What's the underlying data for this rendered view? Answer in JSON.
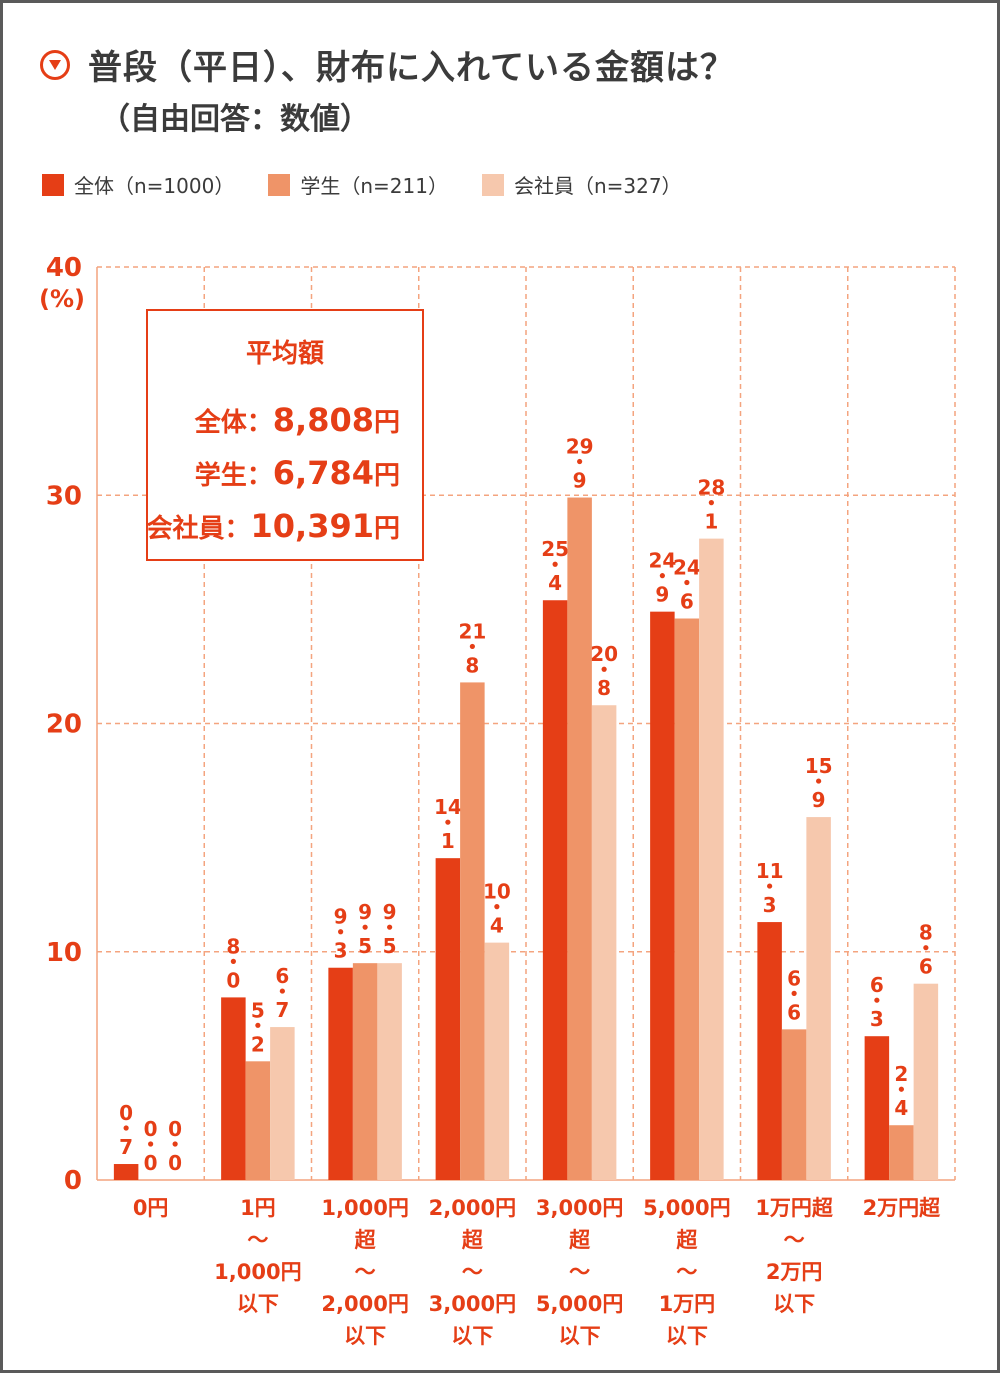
{
  "header": {
    "title": "普段（平日）、財布に入れている金額は？",
    "subtitle": "（自由回答：数値）"
  },
  "colors": {
    "accent": "#e53e16",
    "series": [
      "#e53e16",
      "#ef9468",
      "#f6c8ad"
    ],
    "text": "#3b3b3b"
  },
  "average_box": {
    "title": "平均額",
    "rows": [
      {
        "label": "全体：",
        "value": "8,808",
        "unit": "円"
      },
      {
        "label": "学生：",
        "value": "6,784",
        "unit": "円"
      },
      {
        "label": "会社員：",
        "value": "10,391",
        "unit": "円"
      }
    ]
  },
  "chart_data": {
    "type": "bar",
    "ylabel": "(%)",
    "ylim": [
      0,
      40
    ],
    "yticks": [
      "0",
      "10",
      "20",
      "30",
      "40"
    ],
    "grid": true,
    "legend_position": "top-left",
    "categories": [
      [
        "0円"
      ],
      [
        "1円",
        "～",
        "1,000円",
        "以下"
      ],
      [
        "1,000円",
        "超",
        "～",
        "2,000円",
        "以下"
      ],
      [
        "2,000円",
        "超",
        "～",
        "3,000円",
        "以下"
      ],
      [
        "3,000円",
        "超",
        "～",
        "5,000円",
        "以下"
      ],
      [
        "5,000円",
        "超",
        "～",
        "1万円",
        "以下"
      ],
      [
        "1万円超",
        "～",
        "2万円",
        "以下"
      ],
      [
        "2万円超"
      ]
    ],
    "series": [
      {
        "name": "全体（n=1000）",
        "values": [
          0.7,
          8.0,
          9.3,
          14.1,
          25.4,
          24.9,
          11.3,
          6.3
        ]
      },
      {
        "name": "学生（n=211）",
        "values": [
          0.0,
          5.2,
          9.5,
          21.8,
          29.9,
          24.6,
          6.6,
          2.4
        ]
      },
      {
        "name": "会社員（n=327）",
        "values": [
          0.0,
          6.7,
          9.5,
          10.4,
          20.8,
          28.1,
          15.9,
          8.6
        ]
      }
    ]
  }
}
